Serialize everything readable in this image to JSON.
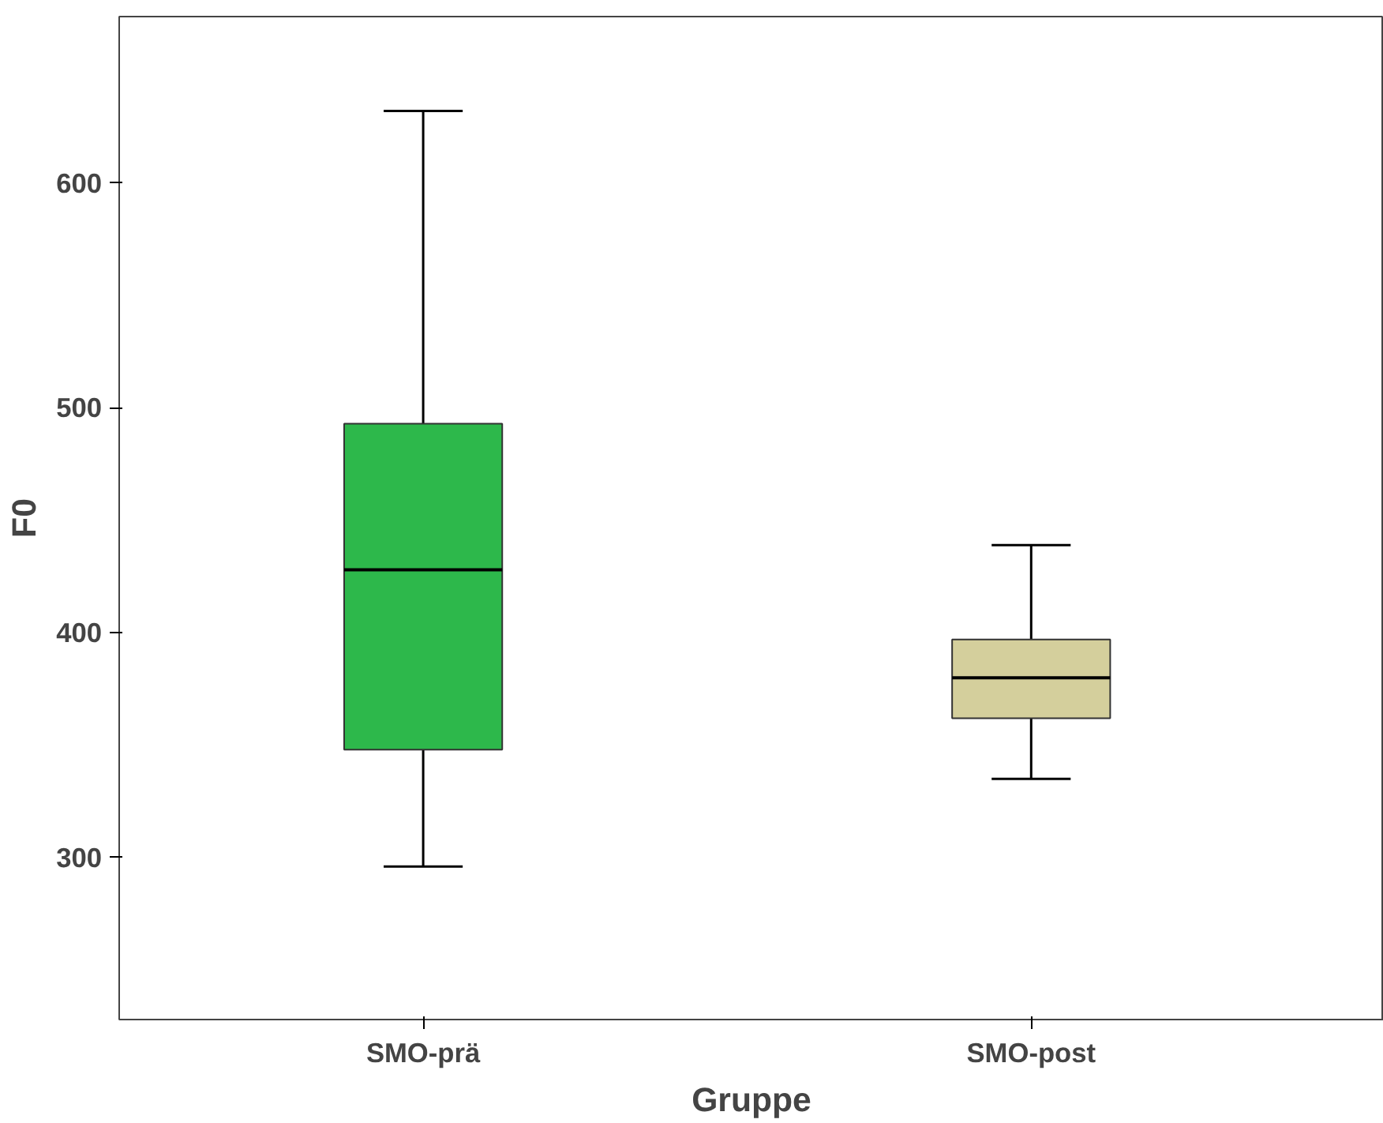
{
  "chart_data": {
    "type": "box",
    "xlabel": "Gruppe",
    "ylabel": "F0",
    "categories": [
      "SMO-prä",
      "SMO-post"
    ],
    "colors": [
      "#2db84b",
      "#d4cf9c"
    ],
    "boxes": [
      {
        "low": 296,
        "q1": 348,
        "median": 428,
        "q3": 493,
        "high": 632
      },
      {
        "low": 335,
        "q1": 362,
        "median": 380,
        "q3": 397,
        "high": 439
      }
    ],
    "ylim": [
      228,
      674
    ],
    "yticks": [
      300,
      400,
      500,
      600
    ],
    "grid": false
  }
}
